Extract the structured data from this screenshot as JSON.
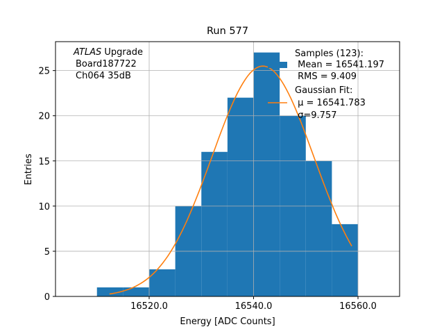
{
  "chart_data": {
    "type": "bar",
    "title": "Run 577",
    "xlabel": "Energy [ADC Counts]",
    "ylabel": "Entries",
    "xlim": [
      16502.06,
      16567.97
    ],
    "ylim": [
      0,
      28.2
    ],
    "grid": true,
    "xticks": [
      16520,
      16540,
      16560
    ],
    "xtick_labels": [
      "16520.0",
      "16540.0",
      "16560.0"
    ],
    "yticks": [
      0,
      5,
      10,
      15,
      20,
      25
    ],
    "ytick_labels": [
      "0",
      "5",
      "10",
      "15",
      "20",
      "25"
    ],
    "bin_edges": [
      16510,
      16515,
      16520,
      16525,
      16530,
      16535,
      16540,
      16545,
      16550,
      16555,
      16560
    ],
    "counts": [
      1,
      1,
      3,
      10,
      16,
      22,
      27,
      20,
      15,
      8
    ],
    "fit": {
      "type": "gaussian",
      "mu": 16541.783,
      "sigma": 9.757,
      "amplitude": 25.5,
      "x_range": [
        16512.4,
        16558.8
      ]
    },
    "bar_color": "#1f77b4",
    "fit_color": "#ff7f0e",
    "annotation": {
      "atlas": "ATLAS",
      "upgrade": " Upgrade",
      "line2": "Board187722",
      "line3": "Ch064 35dB"
    },
    "legend": {
      "placement": "top-right",
      "samples_title": "Samples (123):",
      "mean": " Mean = 16541.197",
      "rms": " RMS = 9.409",
      "fit_title": "Gaussian Fit:",
      "mu": " μ = 16541.783",
      "sigma": " σ=9.757"
    }
  }
}
